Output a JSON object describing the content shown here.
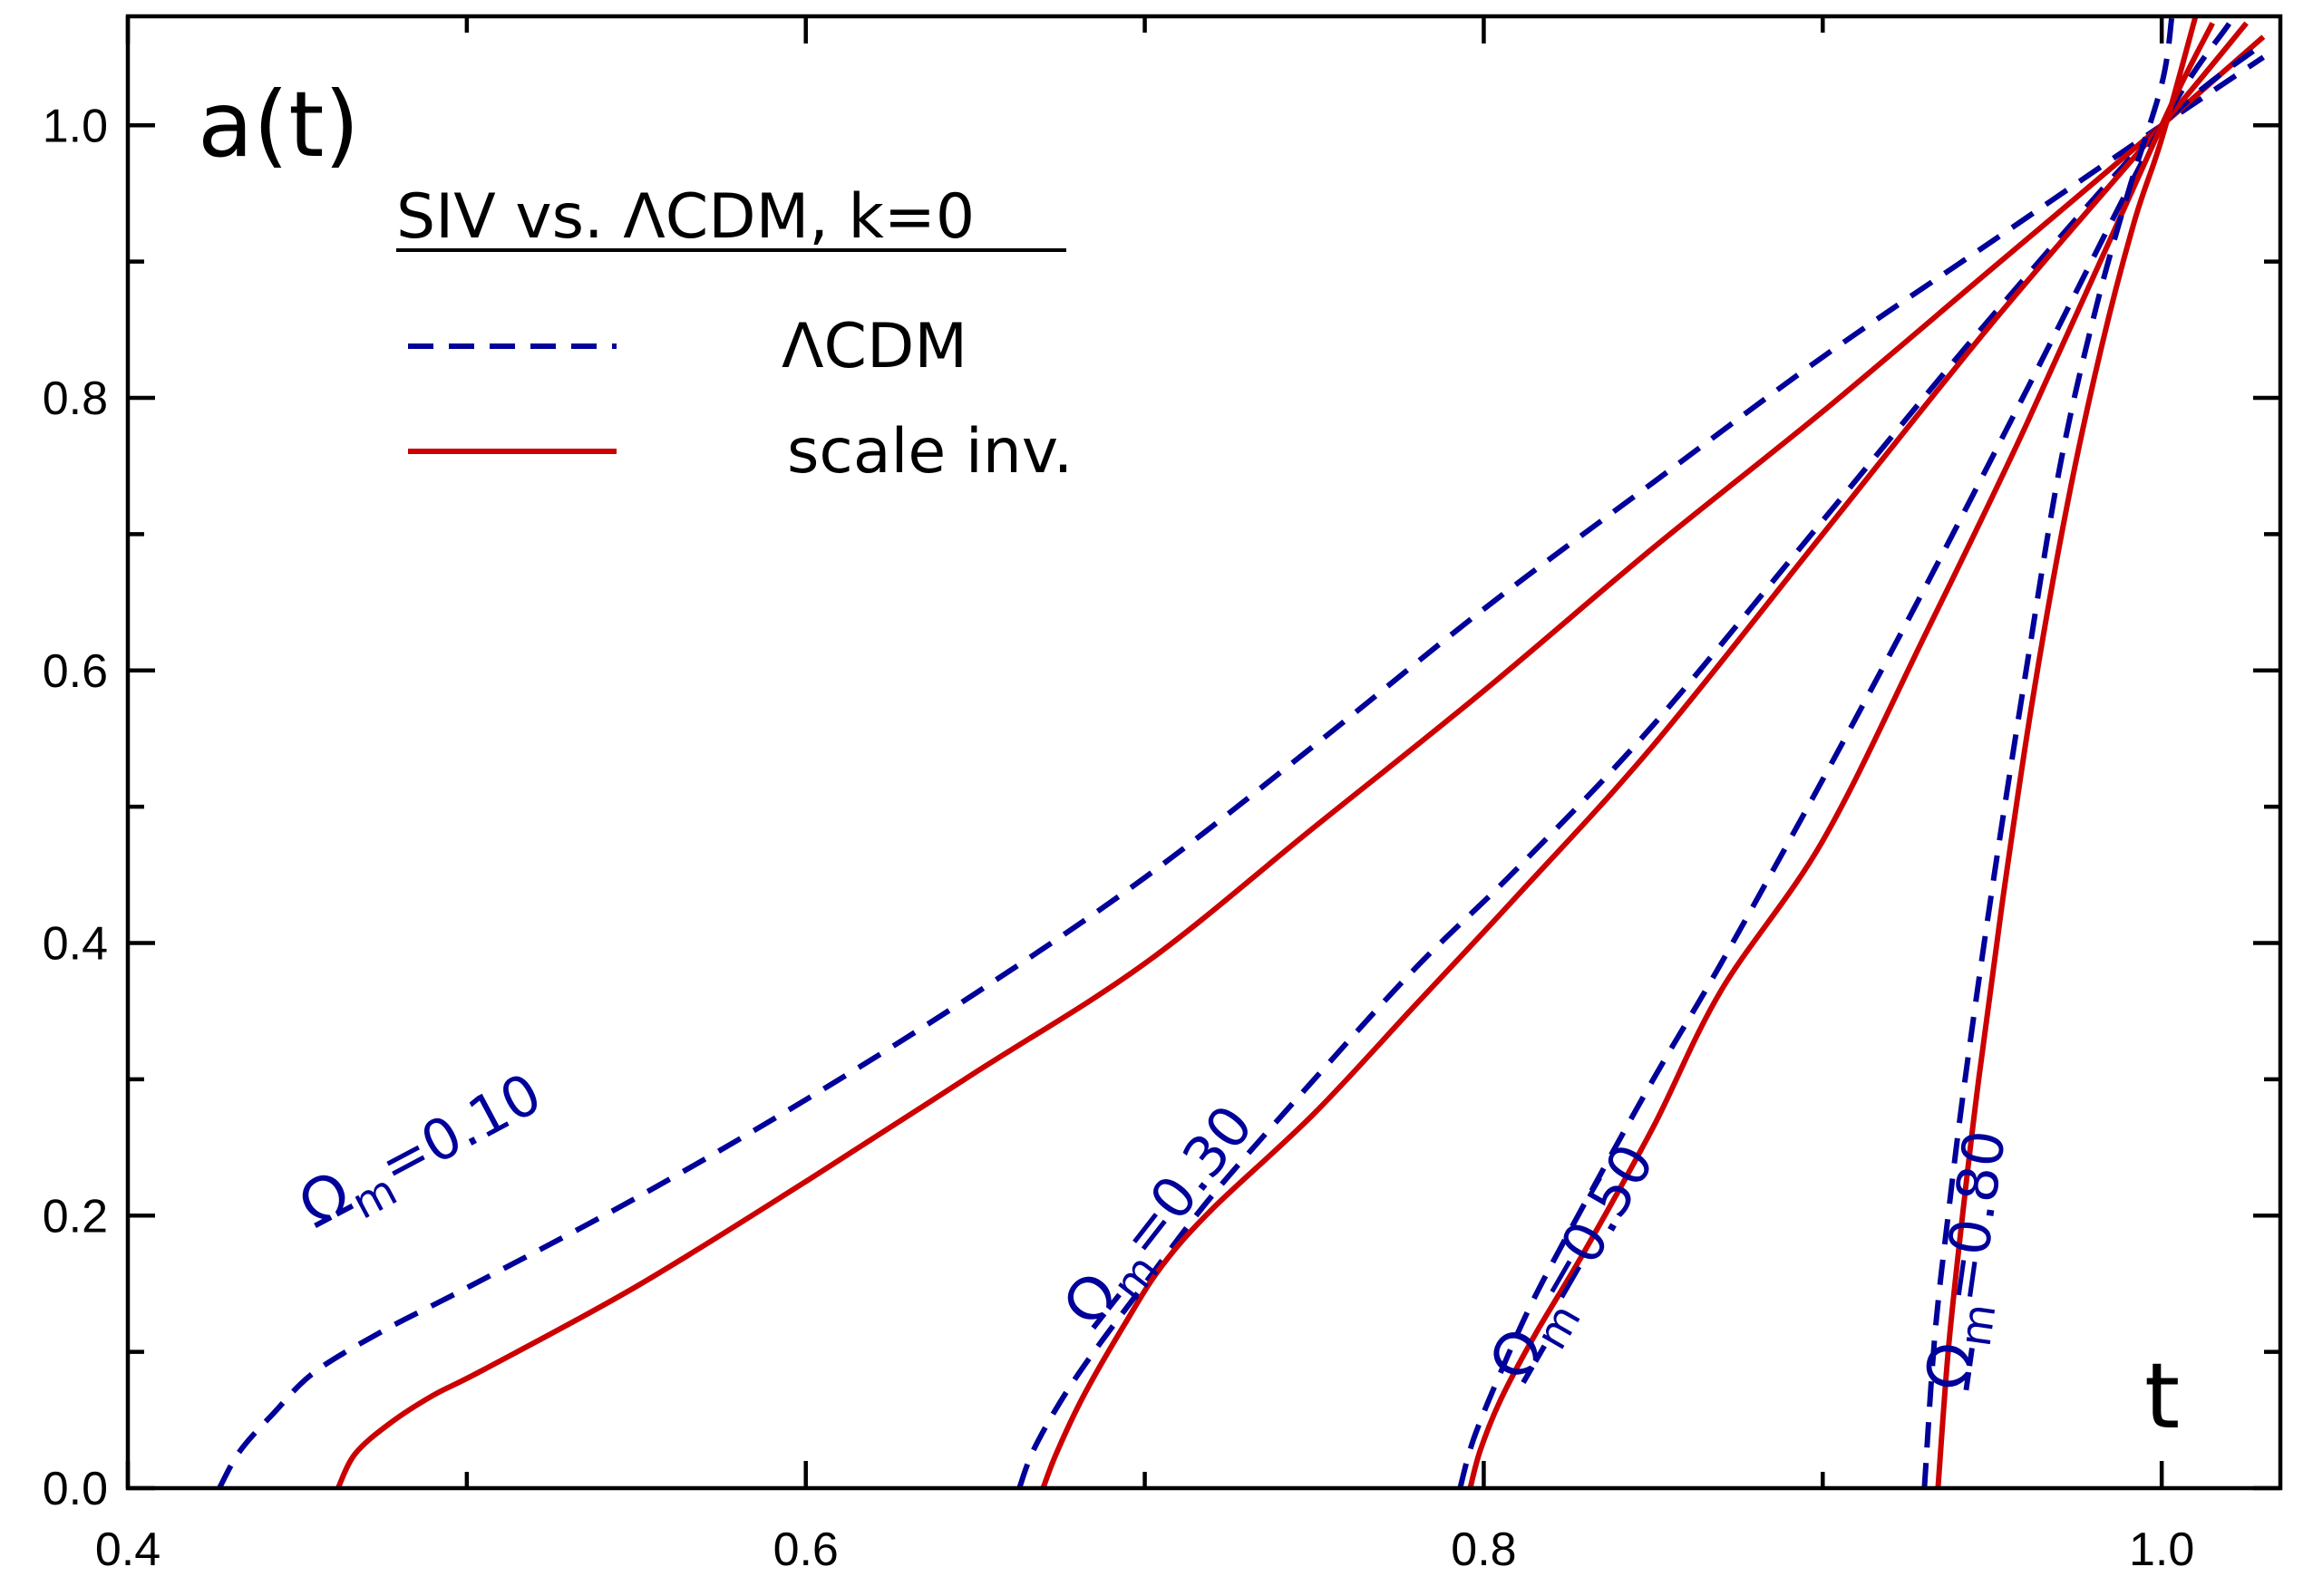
{
  "chart_data": {
    "type": "line",
    "title": "SIV  vs.  ΛCDM, k=0",
    "xlabel": "t",
    "ylabel": "a(t)",
    "xlim": [
      0.4,
      1.035
    ],
    "ylim": [
      0.0,
      1.08
    ],
    "xticks_major": [
      0.4,
      0.6,
      0.8,
      1.0
    ],
    "xticks_major_labels": [
      "0.4",
      "0.6",
      "0.8",
      "1.0"
    ],
    "xticks_minor": [
      0.5,
      0.7,
      0.9
    ],
    "yticks_major": [
      0.0,
      0.2,
      0.4,
      0.6,
      0.8,
      1.0
    ],
    "yticks_major_labels": [
      "0.0",
      "0.2",
      "0.4",
      "0.6",
      "0.8",
      "1.0"
    ],
    "yticks_minor": [
      0.1,
      0.3,
      0.5,
      0.7,
      0.9
    ],
    "legend": [
      {
        "name": "ΛCDM",
        "style": "dashed",
        "color": "#00009a"
      },
      {
        "name": "scale inv.",
        "style": "solid",
        "color": "#cc0000"
      }
    ],
    "colors": {
      "lcdm": "#00009a",
      "siv": "#cc0000"
    },
    "series": [
      {
        "name": "ΛCDM",
        "omega_m": 0.1,
        "label": "Ωm=0.10",
        "label_symbol": "Ω",
        "label_sub": "m",
        "label_value": "=0.10",
        "x": [
          0.427,
          0.433,
          0.443,
          0.455,
          0.475,
          0.5,
          0.55,
          0.6,
          0.65,
          0.7,
          0.75,
          0.8,
          0.85,
          0.9,
          0.95,
          1.0,
          1.03
        ],
        "y": [
          0.0,
          0.027,
          0.055,
          0.085,
          0.115,
          0.147,
          0.213,
          0.285,
          0.363,
          0.448,
          0.545,
          0.645,
          0.738,
          0.83,
          0.915,
          1.0,
          1.05
        ]
      },
      {
        "name": "scale inv.",
        "omega_m": 0.1,
        "x": [
          0.462,
          0.467,
          0.477,
          0.49,
          0.505,
          0.55,
          0.6,
          0.65,
          0.7,
          0.75,
          0.8,
          0.85,
          0.9,
          0.95,
          1.0,
          1.03
        ],
        "y": [
          0.0,
          0.025,
          0.047,
          0.068,
          0.087,
          0.148,
          0.225,
          0.305,
          0.385,
          0.485,
          0.585,
          0.69,
          0.79,
          0.895,
          1.0,
          1.065
        ]
      },
      {
        "name": "ΛCDM",
        "omega_m": 0.3,
        "label": "Ωm=0.30",
        "label_symbol": "Ω",
        "label_sub": "m",
        "label_value": "=0.30",
        "x": [
          0.663,
          0.667,
          0.675,
          0.685,
          0.7,
          0.72,
          0.75,
          0.78,
          0.81,
          0.85,
          0.9,
          0.95,
          1.0,
          1.03
        ],
        "y": [
          0.0,
          0.027,
          0.063,
          0.1,
          0.15,
          0.215,
          0.3,
          0.382,
          0.455,
          0.56,
          0.71,
          0.86,
          1.0,
          1.06
        ]
      },
      {
        "name": "scale inv.",
        "omega_m": 0.3,
        "x": [
          0.67,
          0.674,
          0.682,
          0.694,
          0.705,
          0.72,
          0.75,
          0.78,
          0.81,
          0.85,
          0.9,
          0.95,
          1.0,
          1.025
        ],
        "y": [
          0.0,
          0.026,
          0.068,
          0.12,
          0.163,
          0.205,
          0.275,
          0.355,
          0.435,
          0.545,
          0.7,
          0.855,
          1.0,
          1.075
        ]
      },
      {
        "name": "ΛCDM",
        "omega_m": 0.5,
        "label": "Ωm=0.50",
        "label_symbol": "Ω",
        "label_sub": "m",
        "label_value": "=0.50",
        "x": [
          0.793,
          0.797,
          0.805,
          0.815,
          0.83,
          0.85,
          0.87,
          0.9,
          0.93,
          0.96,
          1.0,
          1.02
        ],
        "y": [
          0.0,
          0.036,
          0.085,
          0.14,
          0.21,
          0.3,
          0.385,
          0.52,
          0.66,
          0.805,
          1.0,
          1.075
        ]
      },
      {
        "name": "scale inv.",
        "omega_m": 0.5,
        "x": [
          0.796,
          0.799,
          0.805,
          0.815,
          0.83,
          0.85,
          0.87,
          0.9,
          0.93,
          0.96,
          1.0,
          1.015
        ],
        "y": [
          0.0,
          0.028,
          0.065,
          0.112,
          0.175,
          0.265,
          0.365,
          0.475,
          0.625,
          0.78,
          1.0,
          1.075
        ]
      },
      {
        "name": "ΛCDM",
        "omega_m": 0.8,
        "label": "Ωm=0.80",
        "label_symbol": "Ω",
        "label_sub": "m",
        "label_value": "=0.80",
        "x": [
          0.93,
          0.933,
          0.937,
          0.942,
          0.95,
          0.96,
          0.97,
          0.98,
          0.99,
          1.0,
          1.003
        ],
        "y": [
          0.0,
          0.11,
          0.2,
          0.3,
          0.44,
          0.6,
          0.75,
          0.86,
          0.95,
          1.03,
          1.08
        ]
      },
      {
        "name": "scale inv.",
        "omega_m": 0.8,
        "x": [
          0.934,
          0.937,
          0.941,
          0.946,
          0.953,
          0.962,
          0.972,
          0.982,
          0.992,
          1.0,
          1.01
        ],
        "y": [
          0.0,
          0.1,
          0.195,
          0.3,
          0.43,
          0.58,
          0.72,
          0.835,
          0.93,
          0.99,
          1.08
        ]
      }
    ]
  }
}
